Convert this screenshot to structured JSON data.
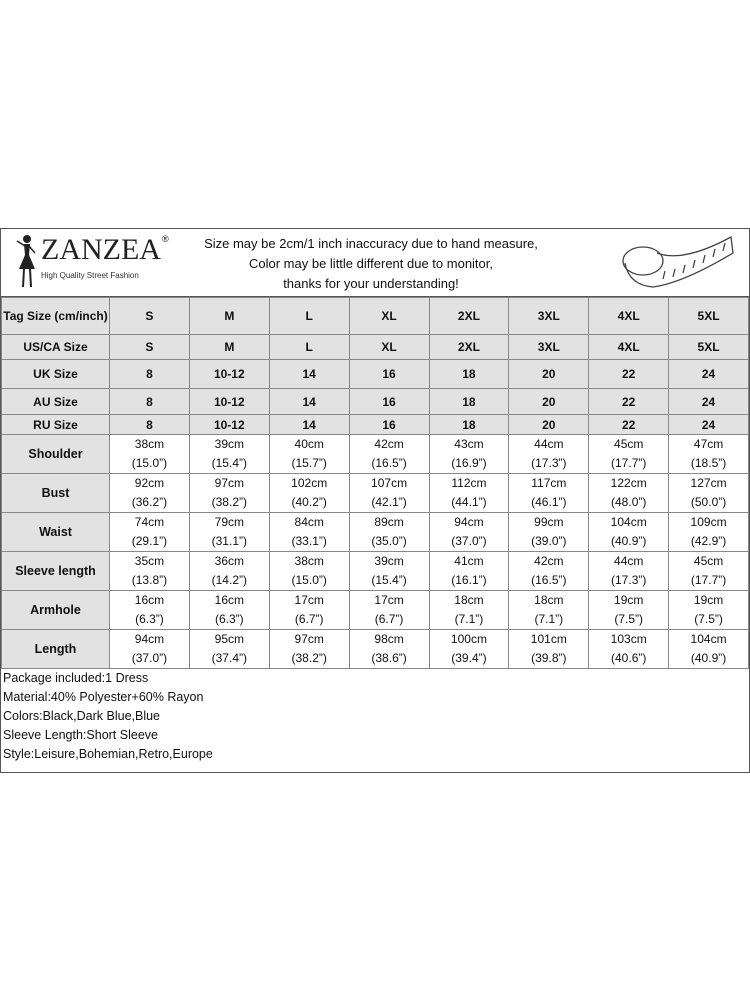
{
  "brand": {
    "name": "ZANZEA",
    "registered": "®",
    "tagline": "High Quality Street Fashion"
  },
  "notice": [
    "Size may be 2cm/1 inch inaccuracy due to hand measure,",
    "Color may be little different due to monitor,",
    "thanks for your understanding!"
  ],
  "icons": {
    "logo": "woman-silhouette-icon",
    "tape": "measuring-tape-icon"
  },
  "size_rows": [
    {
      "label": "Tag Size (cm/inch)",
      "values": [
        "S",
        "M",
        "L",
        "XL",
        "2XL",
        "3XL",
        "4XL",
        "5XL"
      ]
    },
    {
      "label": "US/CA Size",
      "values": [
        "S",
        "M",
        "L",
        "XL",
        "2XL",
        "3XL",
        "4XL",
        "5XL"
      ]
    },
    {
      "label": "UK Size",
      "values": [
        "8",
        "10-12",
        "14",
        "16",
        "18",
        "20",
        "22",
        "24"
      ]
    },
    {
      "label": "AU Size",
      "values": [
        "8",
        "10-12",
        "14",
        "16",
        "18",
        "20",
        "22",
        "24"
      ]
    },
    {
      "label": "RU Size",
      "values": [
        "8",
        "10-12",
        "14",
        "16",
        "18",
        "20",
        "22",
        "24"
      ]
    }
  ],
  "measure_rows": [
    {
      "label": "Shoulder",
      "cm": [
        "38cm",
        "39cm",
        "40cm",
        "42cm",
        "43cm",
        "44cm",
        "45cm",
        "47cm"
      ],
      "in": [
        "(15.0”)",
        "(15.4”)",
        "(15.7”)",
        "(16.5”)",
        "(16.9”)",
        "(17.3”)",
        "(17.7”)",
        "(18.5”)"
      ]
    },
    {
      "label": "Bust",
      "cm": [
        "92cm",
        "97cm",
        "102cm",
        "107cm",
        "112cm",
        "117cm",
        "122cm",
        "127cm"
      ],
      "in": [
        "(36.2”)",
        "(38.2”)",
        "(40.2”)",
        "(42.1”)",
        "(44.1”)",
        "(46.1”)",
        "(48.0”)",
        "(50.0”)"
      ]
    },
    {
      "label": "Waist",
      "cm": [
        "74cm",
        "79cm",
        "84cm",
        "89cm",
        "94cm",
        "99cm",
        "104cm",
        "109cm"
      ],
      "in": [
        "(29.1”)",
        "(31.1”)",
        "(33.1”)",
        "(35.0”)",
        "(37.0”)",
        "(39.0”)",
        "(40.9”)",
        "(42.9”)"
      ]
    },
    {
      "label": "Sleeve length",
      "cm": [
        "35cm",
        "36cm",
        "38cm",
        "39cm",
        "41cm",
        "42cm",
        "44cm",
        "45cm"
      ],
      "in": [
        "(13.8”)",
        "(14.2”)",
        "(15.0”)",
        "(15.4”)",
        "(16.1”)",
        "(16.5”)",
        "(17.3”)",
        "(17.7”)"
      ]
    },
    {
      "label": "Armhole",
      "cm": [
        "16cm",
        "16cm",
        "17cm",
        "17cm",
        "18cm",
        "18cm",
        "19cm",
        "19cm"
      ],
      "in": [
        "(6.3”)",
        "(6.3”)",
        "(6.7”)",
        "(6.7”)",
        "(7.1”)",
        "(7.1”)",
        "(7.5”)",
        "(7.5”)"
      ]
    },
    {
      "label": "Length",
      "cm": [
        "94cm",
        "95cm",
        "97cm",
        "98cm",
        "100cm",
        "101cm",
        "103cm",
        "104cm"
      ],
      "in": [
        "(37.0”)",
        "(37.4”)",
        "(38.2”)",
        "(38.6”)",
        "(39.4”)",
        "(39.8”)",
        "(40.6”)",
        "(40.9”)"
      ]
    }
  ],
  "footer": [
    "Package included:1 Dress",
    "Material:40% Polyester+60% Rayon",
    "Colors:Black,Dark Blue,Blue",
    "Sleeve Length:Short Sleeve",
    "Style:Leisure,Bohemian,Retro,Europe"
  ]
}
